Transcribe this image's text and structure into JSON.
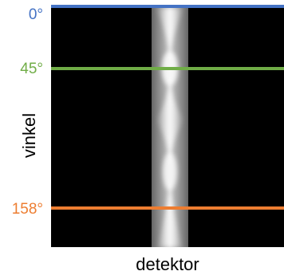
{
  "angle_labels": [
    "0°",
    "45°",
    "158°"
  ],
  "y_axis_label": "vinkel",
  "x_axis_label": "detektor"
}
